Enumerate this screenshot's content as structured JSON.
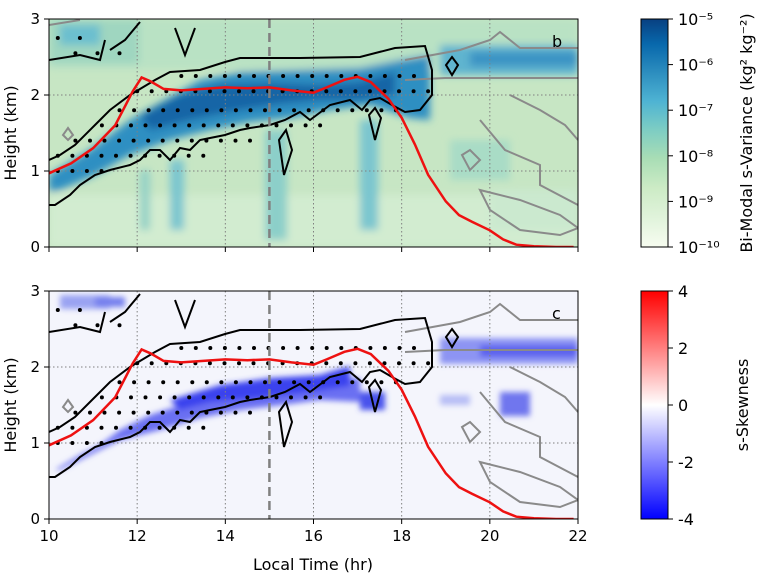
{
  "chart_data": [
    {
      "panel": "b",
      "type": "heatmap",
      "xlim": [
        10,
        22
      ],
      "ylim": [
        0,
        3
      ],
      "xticks": [
        "10",
        "12",
        "14",
        "16",
        "18",
        "20",
        "22"
      ],
      "yticks": [
        "0",
        "1",
        "2",
        "3"
      ],
      "ylabel": "Height (km)",
      "xlabel": "",
      "grid": true,
      "vline_x": 15,
      "red_line": {
        "x": [
          10.0,
          10.5,
          11.0,
          11.5,
          11.9,
          12.1,
          12.3,
          12.6,
          13.0,
          13.5,
          14.0,
          14.5,
          15.0,
          15.5,
          16.0,
          16.3,
          16.7,
          17.0,
          17.3,
          17.7,
          18.0,
          18.3,
          18.6,
          19.0,
          19.3,
          19.6,
          20.0,
          20.3,
          20.6,
          21.0,
          21.5,
          21.9
        ],
        "y": [
          0.97,
          1.1,
          1.3,
          1.6,
          2.05,
          2.23,
          2.18,
          2.08,
          2.06,
          2.08,
          2.1,
          2.09,
          2.1,
          2.06,
          2.03,
          2.1,
          2.2,
          2.24,
          2.17,
          1.95,
          1.7,
          1.35,
          0.95,
          0.6,
          0.42,
          0.33,
          0.22,
          0.1,
          0.03,
          0.01,
          0.0,
          0.0
        ]
      },
      "colorbar": {
        "label": "Bi-Modal s-Variance (kg² kg⁻²)",
        "ticks": [
          "10⁻¹⁰",
          "10⁻⁹",
          "10⁻⁸",
          "10⁻⁷",
          "10⁻⁶",
          "10⁻⁵"
        ],
        "scale": "log",
        "colors": [
          "#f7fcf0",
          "#e0f3db",
          "#ccebc5",
          "#a8ddb5",
          "#7bccc4",
          "#4eb3d3",
          "#2b8cbe",
          "#0868ac",
          "#084081"
        ]
      },
      "annotation": "b"
    },
    {
      "panel": "c",
      "type": "heatmap",
      "xlim": [
        10,
        22
      ],
      "ylim": [
        0,
        3
      ],
      "xticks": [
        "10",
        "12",
        "14",
        "16",
        "18",
        "20",
        "22"
      ],
      "yticks": [
        "0",
        "1",
        "2",
        "3"
      ],
      "ylabel": "Height (km)",
      "xlabel": "Local Time (hr)",
      "grid": true,
      "vline_x": 15,
      "red_line": {
        "x": [
          10.0,
          10.5,
          11.0,
          11.5,
          11.9,
          12.1,
          12.3,
          12.6,
          13.0,
          13.5,
          14.0,
          14.5,
          15.0,
          15.5,
          16.0,
          16.3,
          16.7,
          17.0,
          17.3,
          17.7,
          18.0,
          18.3,
          18.6,
          19.0,
          19.3,
          19.6,
          20.0,
          20.3,
          20.6,
          21.0,
          21.5,
          21.9
        ],
        "y": [
          0.97,
          1.1,
          1.3,
          1.6,
          2.05,
          2.23,
          2.18,
          2.08,
          2.06,
          2.08,
          2.1,
          2.09,
          2.1,
          2.06,
          2.03,
          2.1,
          2.2,
          2.24,
          2.17,
          1.95,
          1.7,
          1.35,
          0.95,
          0.6,
          0.42,
          0.33,
          0.22,
          0.1,
          0.03,
          0.01,
          0.0,
          0.0
        ]
      },
      "colorbar": {
        "label": "s-Skewness",
        "ticks": [
          "4",
          "2",
          "0",
          "-2",
          "-4"
        ],
        "range": [
          -4,
          4
        ],
        "colors": [
          "#0000ff",
          "#ffffff",
          "#ff0000"
        ]
      },
      "annotation": "c"
    }
  ],
  "colors": {
    "red_line": "#ee1111",
    "dashed_line": "#808080",
    "contour_black": "#000000",
    "contour_gray": "#8a8a8a",
    "grid": "#808080",
    "panel_b_background": "#c7e6c4",
    "panel_c_background": "#f4f5fc"
  }
}
